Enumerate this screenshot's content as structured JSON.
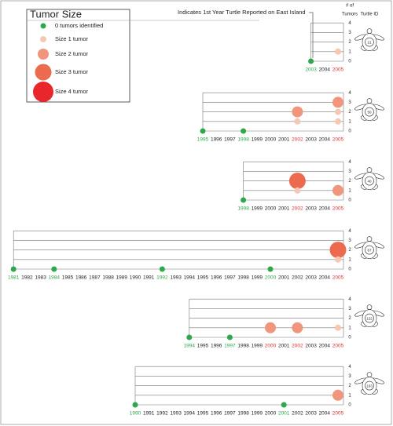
{
  "legend": {
    "title": "Tumor Size",
    "entries": [
      {
        "label": "0 tumors identified",
        "size": 0,
        "color": "#2ea84a"
      },
      {
        "label": "Size 1 tumor",
        "size": 1,
        "color": "#f7c7b6"
      },
      {
        "label": "Size 2 tumor",
        "size": 2,
        "color": "#f1957c"
      },
      {
        "label": "Size 3 tumor",
        "size": 3,
        "color": "#ec6a4e"
      },
      {
        "label": "Size 4 tumor",
        "size": 4,
        "color": "#e8262c"
      }
    ]
  },
  "annotation": "Indicates 1st Year Turtle Reported on East Island",
  "y_axis_label": [
    "# of",
    "Tumors"
  ],
  "id_label": "Turtle ID",
  "year_colors": {
    "first_seen": "#2ea84a",
    "tumor": "#e0302e"
  },
  "chart_data": [
    {
      "type": "dot_timeline",
      "turtle_id": "21",
      "categories": [
        "2003",
        "2004",
        "2005"
      ],
      "ylim": [
        0,
        4
      ],
      "yticks": [
        0,
        1,
        2,
        3,
        4
      ],
      "points": {
        "x": [
          "2003",
          "2005"
        ],
        "y": [
          0,
          1
        ],
        "size": [
          0,
          1
        ]
      }
    },
    {
      "type": "dot_timeline",
      "turtle_id": "50",
      "categories": [
        "1995",
        "1996",
        "1997",
        "1998",
        "1999",
        "2000",
        "2001",
        "2002",
        "2003",
        "2004",
        "2005"
      ],
      "ylim": [
        0,
        4
      ],
      "yticks": [
        0,
        1,
        2,
        3,
        4
      ],
      "points": {
        "x": [
          "1995",
          "1998",
          "2002",
          "2002",
          "2005",
          "2005",
          "2005"
        ],
        "y": [
          0,
          0,
          2,
          1,
          3,
          2,
          1
        ],
        "size": [
          0,
          0,
          2,
          1,
          2,
          1,
          1
        ]
      }
    },
    {
      "type": "dot_timeline",
      "turtle_id": "40",
      "categories": [
        "1998",
        "1999",
        "2000",
        "2001",
        "2002",
        "2003",
        "2004",
        "2005"
      ],
      "ylim": [
        0,
        4
      ],
      "yticks": [
        0,
        1,
        2,
        3,
        4
      ],
      "points": {
        "x": [
          "1998",
          "2002",
          "2002",
          "2005"
        ],
        "y": [
          0,
          2,
          1,
          1
        ],
        "size": [
          0,
          3,
          1,
          2
        ]
      }
    },
    {
      "type": "dot_timeline",
      "turtle_id": "67",
      "categories": [
        "1981",
        "1982",
        "1983",
        "1984",
        "1985",
        "1986",
        "1987",
        "1988",
        "1989",
        "1990",
        "1991",
        "1992",
        "1993",
        "1994",
        "1995",
        "1996",
        "1997",
        "1998",
        "1999",
        "2000",
        "2001",
        "2002",
        "2003",
        "2004",
        "2005"
      ],
      "ylim": [
        0,
        4
      ],
      "yticks": [
        0,
        1,
        2,
        3,
        4
      ],
      "points": {
        "x": [
          "1981",
          "1984",
          "1992",
          "2000",
          "2005",
          "2005"
        ],
        "y": [
          0,
          0,
          0,
          0,
          2,
          1
        ],
        "size": [
          0,
          0,
          0,
          0,
          3,
          1
        ]
      }
    },
    {
      "type": "dot_timeline",
      "turtle_id": "122",
      "categories": [
        "1994",
        "1995",
        "1996",
        "1997",
        "1998",
        "1999",
        "2000",
        "2001",
        "2002",
        "2003",
        "2004",
        "2005"
      ],
      "ylim": [
        0,
        4
      ],
      "yticks": [
        0,
        1,
        2,
        3,
        4
      ],
      "points": {
        "x": [
          "1994",
          "1997",
          "2000",
          "2002",
          "2005"
        ],
        "y": [
          0,
          0,
          1,
          1,
          1
        ],
        "size": [
          0,
          0,
          2,
          2,
          1
        ]
      }
    },
    {
      "type": "dot_timeline",
      "turtle_id": "163",
      "categories": [
        "1990",
        "1991",
        "1992",
        "1993",
        "1994",
        "1995",
        "1996",
        "1997",
        "1998",
        "1999",
        "2000",
        "2001",
        "2002",
        "2003",
        "2004",
        "2005"
      ],
      "ylim": [
        0,
        4
      ],
      "yticks": [
        0,
        1,
        2,
        3,
        4
      ],
      "points": {
        "x": [
          "1990",
          "2001",
          "2005"
        ],
        "y": [
          0,
          0,
          1
        ],
        "size": [
          0,
          0,
          2
        ]
      }
    }
  ]
}
